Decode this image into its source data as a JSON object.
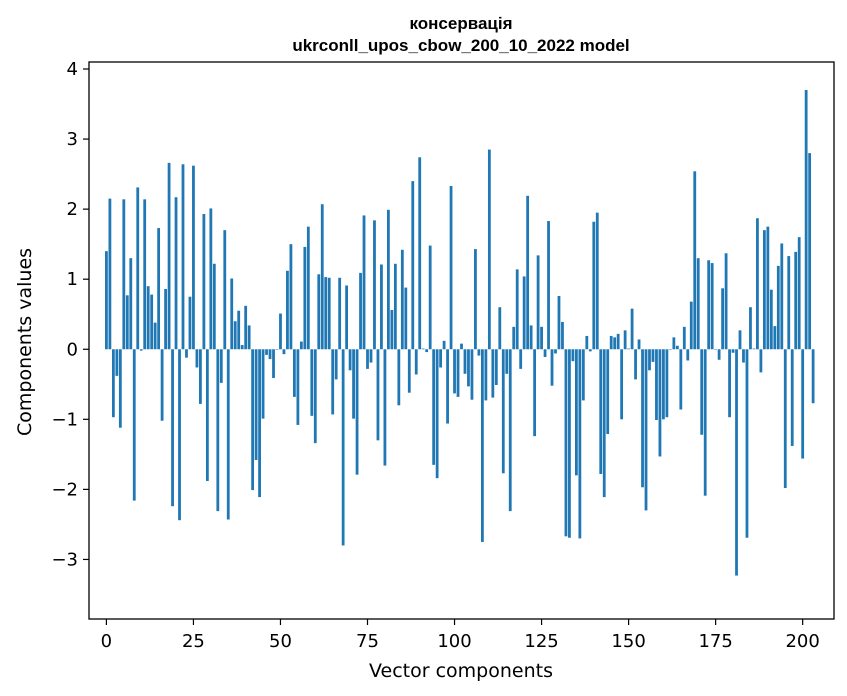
{
  "chart_data": {
    "type": "bar",
    "title": "консервація",
    "subtitle": "ukrconll_upos_cbow_200_10_2022 model",
    "xlabel": "Vector components",
    "ylabel": "Components values",
    "xlim": [
      -5,
      209
    ],
    "ylim": [
      -3.85,
      4.1
    ],
    "xticks": [
      0,
      25,
      50,
      75,
      100,
      125,
      150,
      175,
      200
    ],
    "yticks": [
      -3,
      -2,
      -1,
      0,
      1,
      2,
      3,
      4
    ],
    "xtick_labels": [
      "0",
      "25",
      "50",
      "75",
      "100",
      "125",
      "150",
      "175",
      "200"
    ],
    "ytick_labels": [
      "−3",
      "−2",
      "−1",
      "0",
      "1",
      "2",
      "3",
      "4"
    ],
    "bar_color": "#1f77b4",
    "values": [
      1.4,
      2.15,
      -0.97,
      -0.38,
      -1.12,
      2.14,
      0.77,
      1.3,
      -2.16,
      2.31,
      -0.02,
      2.14,
      0.9,
      0.78,
      0.38,
      1.73,
      -1.02,
      0.86,
      2.66,
      -2.24,
      2.17,
      -2.44,
      2.64,
      -0.12,
      0.75,
      2.62,
      -0.26,
      -0.78,
      1.93,
      -1.88,
      2.01,
      1.22,
      -2.31,
      -0.48,
      1.7,
      -2.43,
      1.01,
      0.4,
      0.55,
      0.06,
      0.62,
      0.34,
      -2.01,
      -1.58,
      -2.11,
      -0.99,
      -0.08,
      -0.14,
      -0.41,
      0.0,
      0.51,
      -0.07,
      1.12,
      1.5,
      -0.68,
      -1.08,
      0.11,
      1.46,
      1.75,
      -0.95,
      -1.34,
      1.07,
      2.07,
      1.03,
      1.02,
      -0.93,
      -0.43,
      1.02,
      -2.8,
      0.91,
      -0.3,
      -0.99,
      -1.79,
      1.09,
      1.91,
      -0.28,
      -0.19,
      1.84,
      -1.3,
      1.21,
      -1.66,
      1.99,
      0.56,
      1.22,
      -0.8,
      1.42,
      0.88,
      -0.62,
      2.4,
      -0.36,
      2.74,
      0.01,
      -0.04,
      1.48,
      -1.65,
      -1.84,
      -0.26,
      0.12,
      -1.06,
      2.33,
      -0.63,
      -0.68,
      0.08,
      -0.35,
      -0.53,
      -0.72,
      1.43,
      -0.09,
      -2.75,
      -0.73,
      2.85,
      -0.69,
      -0.51,
      0.6,
      -1.77,
      -0.35,
      -2.31,
      0.32,
      1.14,
      -0.28,
      1.04,
      2.19,
      0.34,
      -1.24,
      1.34,
      0.32,
      -0.11,
      1.83,
      -0.52,
      -0.06,
      0.76,
      0.39,
      -2.67,
      -2.69,
      -0.17,
      -1.8,
      -2.7,
      -0.73,
      0.19,
      -0.03,
      1.82,
      1.95,
      -1.78,
      -2.11,
      -1.21,
      0.19,
      0.17,
      0.22,
      -1.0,
      0.27,
      0.01,
      0.58,
      -0.43,
      0.14,
      -1.97,
      -2.3,
      -0.3,
      -0.18,
      -1.01,
      -1.53,
      -1.0,
      -0.97,
      0.0,
      0.17,
      0.05,
      -0.86,
      0.32,
      -0.16,
      0.68,
      2.54,
      1.3,
      -1.22,
      -2.09,
      1.27,
      1.23,
      0.0,
      -0.15,
      0.87,
      1.37,
      -0.97,
      -0.05,
      -3.23,
      0.27,
      -0.19,
      -2.69,
      0.6,
      0.01,
      1.87,
      -0.33,
      1.7,
      1.75,
      0.85,
      0.33,
      1.19,
      1.51,
      -1.98,
      1.33,
      -1.38,
      1.39,
      1.6,
      -1.56,
      3.7,
      2.8,
      -0.77
    ]
  }
}
